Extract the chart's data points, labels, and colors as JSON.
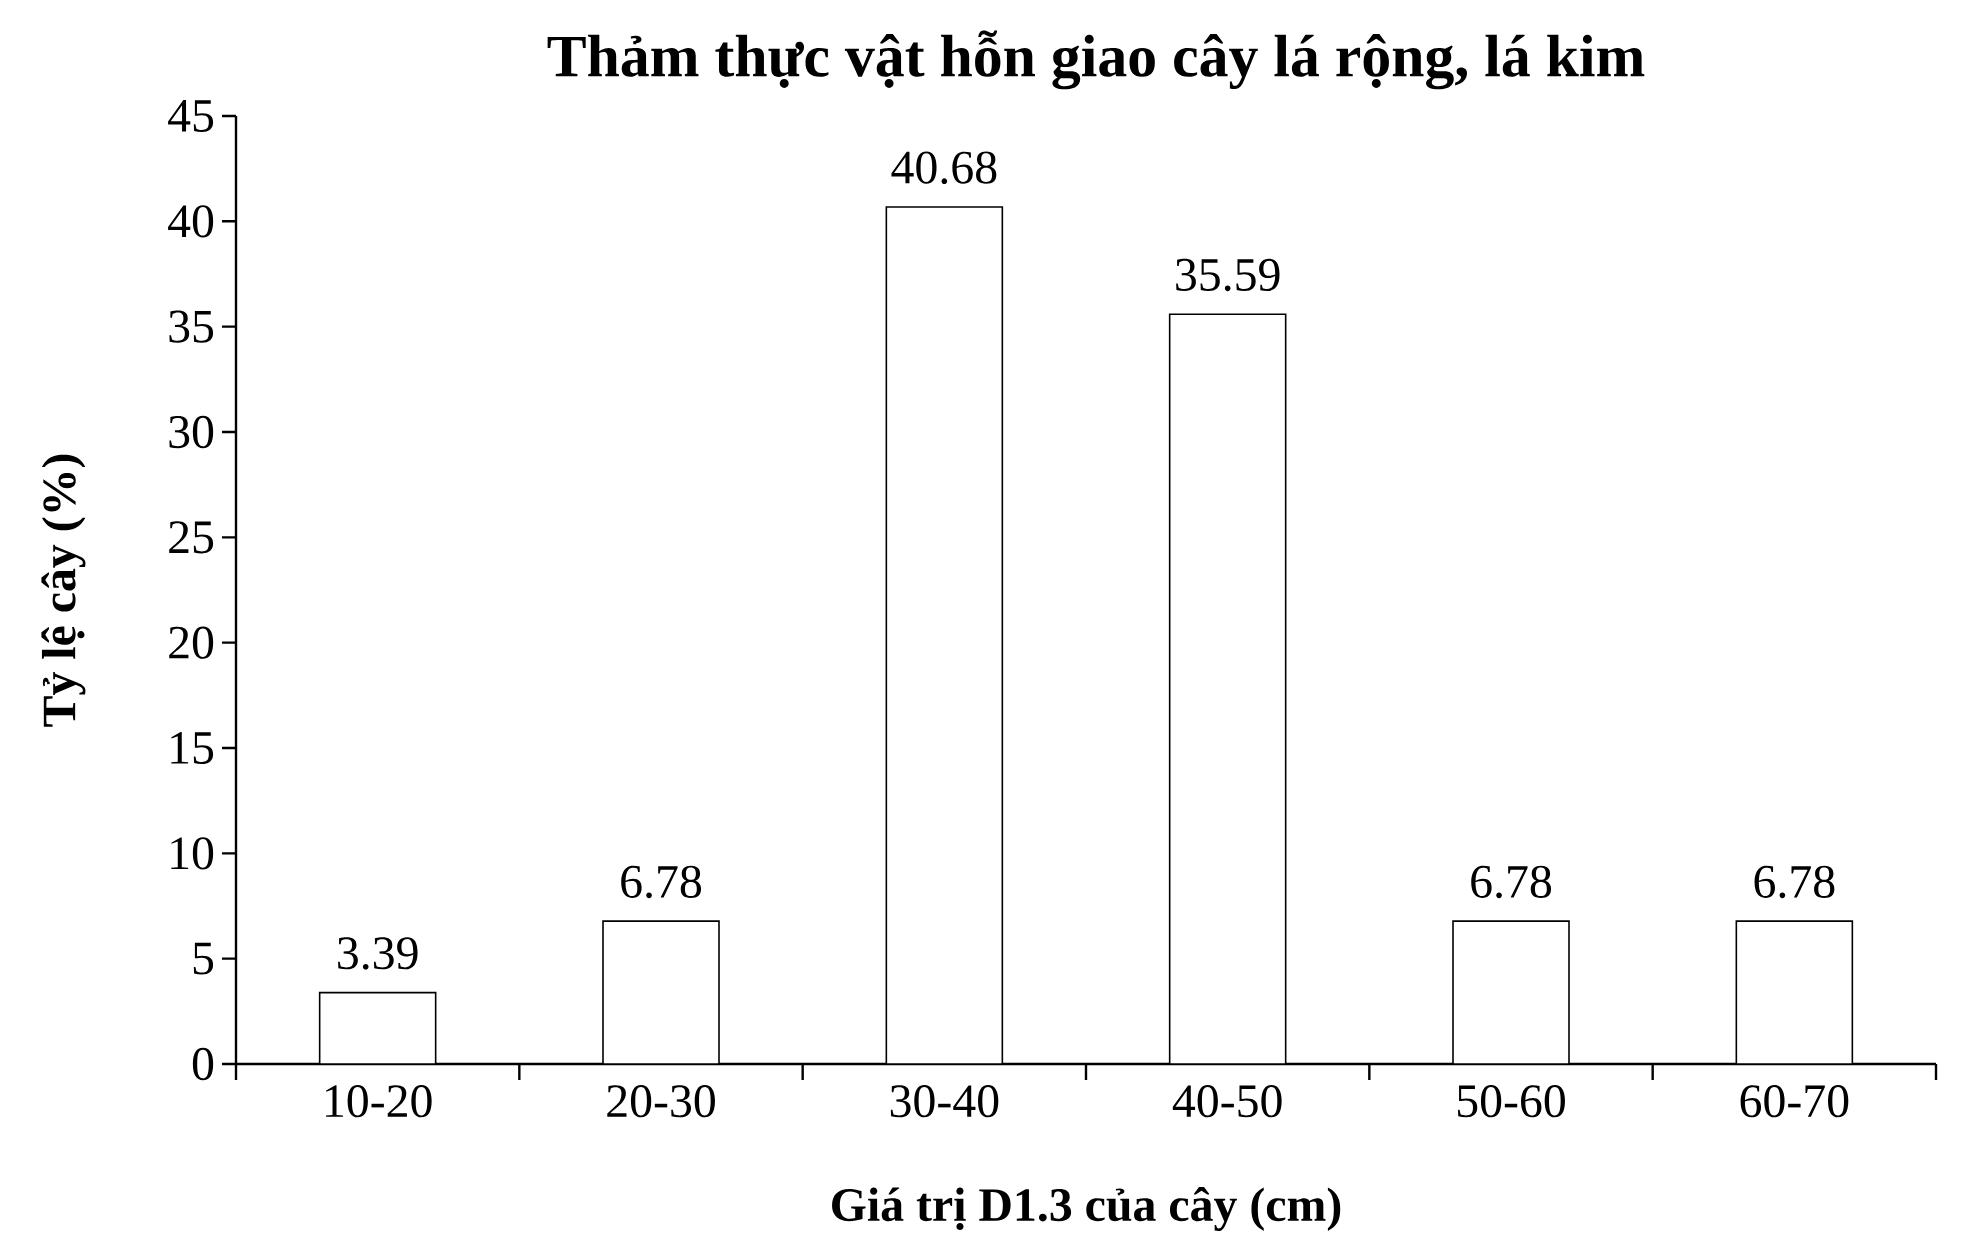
{
  "chart_data": {
    "type": "bar",
    "title": "Thảm thực vật hỗn giao cây lá rộng, lá kim",
    "xlabel": "Giá trị D1.3 của cây (cm)",
    "ylabel": "Tỷ lệ cây (%)",
    "categories": [
      "10-20",
      "20-30",
      "30-40",
      "40-50",
      "50-60",
      "60-70"
    ],
    "values": [
      3.39,
      6.78,
      40.68,
      35.59,
      6.78,
      6.78
    ],
    "color": "#ffffff",
    "ylim": [
      0,
      45
    ],
    "yticks": [
      0,
      5,
      10,
      15,
      20,
      25,
      30,
      35,
      40,
      45
    ],
    "data_labels": true,
    "grid": false
  }
}
